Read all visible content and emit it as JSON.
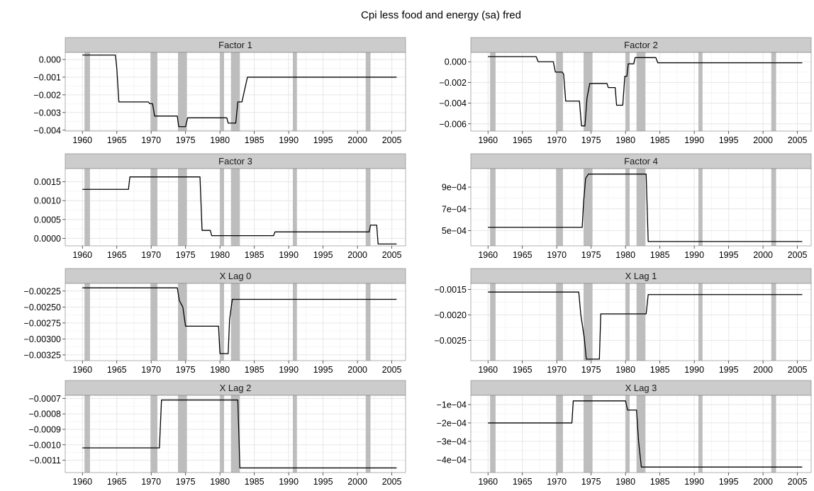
{
  "chart_data": {
    "type": "line",
    "title": "Cpi less food and energy (sa) fred",
    "grid": true,
    "colors": {
      "line": "#000000",
      "recession": "#bdbdbd",
      "panel_bg": "#ffffff",
      "strip_bg": "#cccccc",
      "grid_major": "#e6e6e6",
      "grid_minor": "#f3f3f3"
    },
    "recession_bands": [
      [
        1960.3,
        1961.1
      ],
      [
        1969.9,
        1970.9
      ],
      [
        1973.9,
        1975.2
      ],
      [
        1980.0,
        1980.6
      ],
      [
        1981.6,
        1982.9
      ],
      [
        1990.6,
        1991.2
      ],
      [
        2001.2,
        2001.9
      ]
    ],
    "xlim": [
      1957.5,
      2007.0
    ],
    "x_ticks": [
      1960,
      1965,
      1970,
      1975,
      1980,
      1985,
      1990,
      1995,
      2000,
      2005
    ],
    "panels": [
      {
        "title": "Factor 1",
        "ylim": [
          -0.00405,
          0.0004
        ],
        "y_ticks": [
          0.0,
          -0.001,
          -0.002,
          -0.003,
          -0.004
        ],
        "y_tick_labels": [
          "0.000",
          "−0.001",
          "−0.002",
          "−0.003",
          "−0.004"
        ],
        "points": [
          [
            1960.0,
            0.00025
          ],
          [
            1964.8,
            0.00025
          ],
          [
            1965.0,
            -0.0005
          ],
          [
            1965.3,
            -0.0024
          ],
          [
            1969.6,
            -0.0024
          ],
          [
            1969.8,
            -0.0025
          ],
          [
            1970.2,
            -0.0025
          ],
          [
            1970.5,
            -0.0032
          ],
          [
            1973.8,
            -0.0032
          ],
          [
            1974.0,
            -0.0038
          ],
          [
            1975.0,
            -0.0038
          ],
          [
            1975.3,
            -0.0033
          ],
          [
            1981.0,
            -0.0033
          ],
          [
            1981.2,
            -0.0036
          ],
          [
            1982.3,
            -0.0036
          ],
          [
            1982.6,
            -0.0024
          ],
          [
            1983.2,
            -0.0024
          ],
          [
            1983.6,
            -0.0017
          ],
          [
            1984.0,
            -0.001
          ],
          [
            2005.7,
            -0.001
          ]
        ]
      },
      {
        "title": "Factor 2",
        "ylim": [
          -0.0067,
          0.0009
        ],
        "y_ticks": [
          0.0,
          -0.002,
          -0.004,
          -0.006
        ],
        "y_tick_labels": [
          "0.000",
          "−0.002",
          "−0.004",
          "−0.006"
        ],
        "points": [
          [
            1960.0,
            0.0005
          ],
          [
            1967.0,
            0.0005
          ],
          [
            1967.3,
            0.0
          ],
          [
            1969.5,
            0.0
          ],
          [
            1969.8,
            -0.001
          ],
          [
            1970.8,
            -0.001
          ],
          [
            1971.0,
            -0.0012
          ],
          [
            1971.3,
            -0.0038
          ],
          [
            1973.3,
            -0.0038
          ],
          [
            1973.6,
            -0.0062
          ],
          [
            1974.1,
            -0.0062
          ],
          [
            1974.4,
            -0.0035
          ],
          [
            1974.8,
            -0.0021
          ],
          [
            1977.3,
            -0.0021
          ],
          [
            1977.5,
            -0.0025
          ],
          [
            1978.5,
            -0.0025
          ],
          [
            1978.7,
            -0.0042
          ],
          [
            1979.6,
            -0.0042
          ],
          [
            1979.9,
            -0.0014
          ],
          [
            1980.2,
            -0.0014
          ],
          [
            1980.4,
            -0.0002
          ],
          [
            1981.2,
            -0.0002
          ],
          [
            1981.4,
            0.0004
          ],
          [
            1984.4,
            0.0004
          ],
          [
            1984.7,
            -0.0001
          ],
          [
            2005.7,
            -0.0001
          ]
        ]
      },
      {
        "title": "Factor 3",
        "ylim": [
          -0.0002,
          0.00185
        ],
        "y_ticks": [
          0.0015,
          0.001,
          0.0005,
          0.0
        ],
        "y_tick_labels": [
          "0.0015",
          "0.0010",
          "0.0005",
          "0.0000"
        ],
        "points": [
          [
            1960.0,
            0.0013
          ],
          [
            1966.7,
            0.0013
          ],
          [
            1966.9,
            0.00163
          ],
          [
            1977.1,
            0.00163
          ],
          [
            1977.4,
            0.00021
          ],
          [
            1978.6,
            0.00021
          ],
          [
            1978.8,
            7e-05
          ],
          [
            1987.8,
            7e-05
          ],
          [
            1988.0,
            0.00017
          ],
          [
            2001.7,
            0.00017
          ],
          [
            2001.9,
            0.00035
          ],
          [
            2002.8,
            0.00035
          ],
          [
            2003.0,
            -0.00015
          ],
          [
            2005.7,
            -0.00015
          ]
        ]
      },
      {
        "title": "Factor 4",
        "ylim": [
          0.00036,
          0.00107
        ],
        "y_ticks": [
          0.0009,
          0.0007,
          0.0005
        ],
        "y_tick_labels": [
          "9e−04",
          "7e−04",
          "5e−04"
        ],
        "points": [
          [
            1960.0,
            0.00053
          ],
          [
            1973.7,
            0.00053
          ],
          [
            1973.9,
            0.00076
          ],
          [
            1974.2,
            0.00098
          ],
          [
            1974.6,
            0.00102
          ],
          [
            1983.0,
            0.00102
          ],
          [
            1983.3,
            0.0004
          ],
          [
            2005.7,
            0.0004
          ]
        ]
      },
      {
        "title": "X Lag 0",
        "ylim": [
          -0.00334,
          -0.00213
        ],
        "y_ticks": [
          -0.00225,
          -0.0025,
          -0.00275,
          -0.003,
          -0.00325
        ],
        "y_tick_labels": [
          "−0.00225",
          "−0.00250",
          "−0.00275",
          "−0.00300",
          "−0.00325"
        ],
        "points": [
          [
            1960.0,
            -0.0022
          ],
          [
            1973.8,
            -0.0022
          ],
          [
            1974.1,
            -0.0024
          ],
          [
            1974.6,
            -0.0025
          ],
          [
            1975.0,
            -0.0028
          ],
          [
            1979.8,
            -0.0028
          ],
          [
            1980.0,
            -0.00323
          ],
          [
            1981.2,
            -0.00323
          ],
          [
            1981.4,
            -0.0027
          ],
          [
            1981.8,
            -0.00238
          ],
          [
            2005.7,
            -0.00238
          ]
        ]
      },
      {
        "title": "X Lag 1",
        "ylim": [
          -0.0029,
          -0.00138
        ],
        "y_ticks": [
          -0.0015,
          -0.002,
          -0.0025
        ],
        "y_tick_labels": [
          "−0.0015",
          "−0.0020",
          "−0.0025"
        ],
        "points": [
          [
            1960.0,
            -0.00155
          ],
          [
            1973.2,
            -0.00155
          ],
          [
            1973.5,
            -0.002
          ],
          [
            1974.0,
            -0.00245
          ],
          [
            1974.3,
            -0.00287
          ],
          [
            1976.2,
            -0.00287
          ],
          [
            1976.4,
            -0.00198
          ],
          [
            1983.0,
            -0.00198
          ],
          [
            1983.3,
            -0.0016
          ],
          [
            2005.7,
            -0.0016
          ]
        ]
      },
      {
        "title": "X Lag 2",
        "ylim": [
          -0.00118,
          -0.00068
        ],
        "y_ticks": [
          -0.0007,
          -0.0008,
          -0.0009,
          -0.001,
          -0.0011
        ],
        "y_tick_labels": [
          "−0.0007",
          "−0.0008",
          "−0.0009",
          "−0.0010",
          "−0.0011"
        ],
        "points": [
          [
            1960.0,
            -0.00102
          ],
          [
            1971.2,
            -0.00102
          ],
          [
            1971.5,
            -0.00071
          ],
          [
            1982.6,
            -0.00071
          ],
          [
            1982.9,
            -0.00115
          ],
          [
            2005.7,
            -0.00115
          ]
        ]
      },
      {
        "title": "X Lag 3",
        "ylim": [
          -0.00047,
          -5e-05
        ],
        "y_ticks": [
          -0.0001,
          -0.0002,
          -0.0003,
          -0.0004
        ],
        "y_tick_labels": [
          "−1e−04",
          "−2e−04",
          "−3e−04",
          "−4e−04"
        ],
        "points": [
          [
            1960.0,
            -0.0002
          ],
          [
            1972.2,
            -0.0002
          ],
          [
            1972.4,
            -8e-05
          ],
          [
            1980.0,
            -8e-05
          ],
          [
            1980.3,
            -0.00013
          ],
          [
            1981.6,
            -0.00013
          ],
          [
            1981.9,
            -0.0003
          ],
          [
            1982.3,
            -0.00044
          ],
          [
            2005.7,
            -0.00044
          ]
        ]
      }
    ]
  }
}
